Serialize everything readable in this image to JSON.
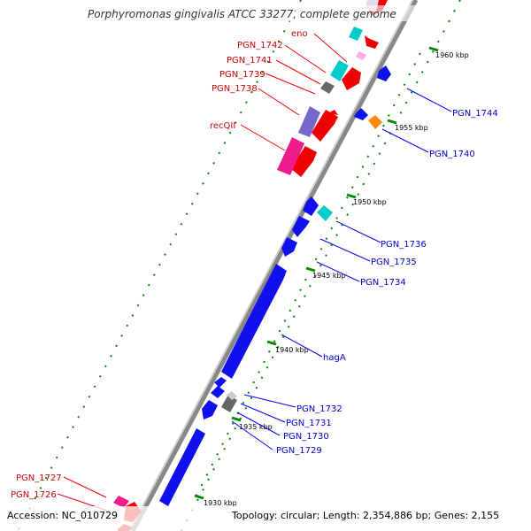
{
  "title": "Porphyromonas gingivalis ATCC 33277, complete genome",
  "footer": {
    "accession": "Accession: NC_010729",
    "summary": "Topology: circular; Length: 2,354,886 bp; Genes: 2,155"
  },
  "colors": {
    "forward_label": "#cc0000",
    "reverse_label": "#0000cc",
    "backbone": "#999999",
    "tick": "#008800",
    "gene_red": "#ee0000",
    "gene_blue": "#1010ee",
    "gene_cyan": "#00cccc",
    "gene_pink": "#ee1c8c",
    "gene_purple": "#7766cc",
    "gene_gray": "#666666",
    "gene_orange": "#ff8800"
  },
  "kbp_marks": [
    {
      "label": "1960 kbp"
    },
    {
      "label": "1955 kbp"
    },
    {
      "label": "1950 kbp"
    },
    {
      "label": "1945 kbp"
    },
    {
      "label": "1940 kbp"
    },
    {
      "label": "1935 kbp"
    },
    {
      "label": "1930 kbp"
    }
  ],
  "forward_labels": [
    {
      "text": "eno"
    },
    {
      "text": "PGN_1742"
    },
    {
      "text": "PGN_1741"
    },
    {
      "text": "PGN_1739"
    },
    {
      "text": "PGN_1738"
    },
    {
      "text": "recQII"
    },
    {
      "text": "PGN_1727"
    },
    {
      "text": "PGN_1726"
    }
  ],
  "reverse_labels": [
    {
      "text": "PGN_1744"
    },
    {
      "text": "PGN_1740"
    },
    {
      "text": "PGN_1736"
    },
    {
      "text": "PGN_1735"
    },
    {
      "text": "PGN_1734"
    },
    {
      "text": "hagA"
    },
    {
      "text": "PGN_1732"
    },
    {
      "text": "PGN_1731"
    },
    {
      "text": "PGN_1730"
    },
    {
      "text": "PGN_1729"
    }
  ]
}
